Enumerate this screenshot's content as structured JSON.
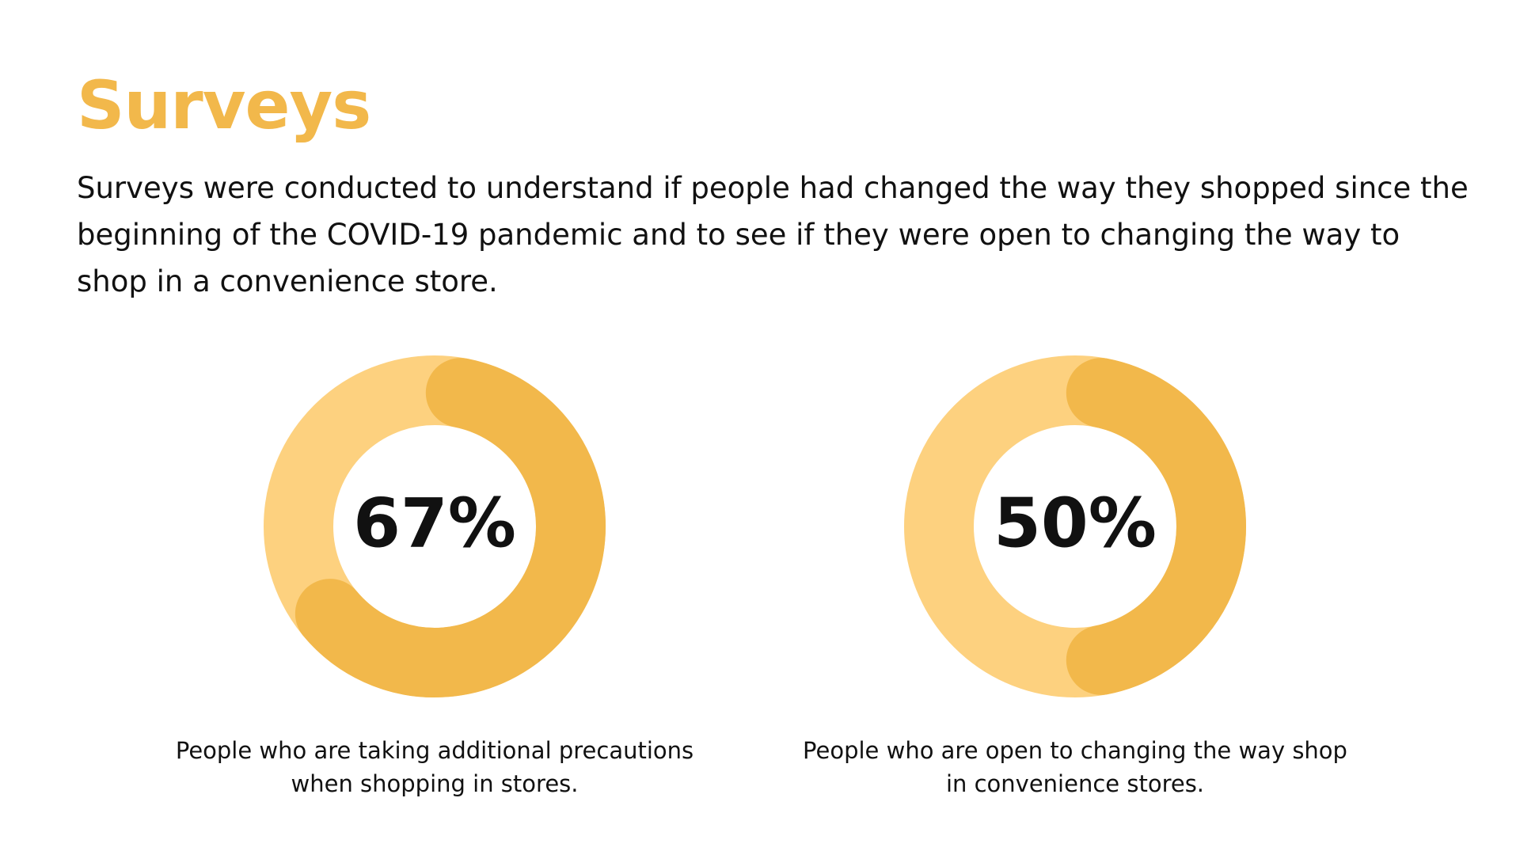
{
  "slide": {
    "title": "Surveys",
    "intro": "Surveys were conducted to understand if people had changed the way they shopped since the beginning of the COVID-19 pandemic and to see if they were open to changing the way to shop in a convenience store."
  },
  "colors": {
    "accent": "#F2B84B",
    "track": "#FDD17F",
    "text": "#111111",
    "background": "#FFFFFF"
  },
  "chart_data": [
    {
      "type": "pie",
      "variant": "donut",
      "value": 67,
      "unit": "%",
      "label": "67%",
      "caption": "People who are taking additional precautions when shopping in stores."
    },
    {
      "type": "pie",
      "variant": "donut",
      "value": 50,
      "unit": "%",
      "label": "50%",
      "caption": "People who are open to changing the way shop in convenience stores."
    }
  ]
}
